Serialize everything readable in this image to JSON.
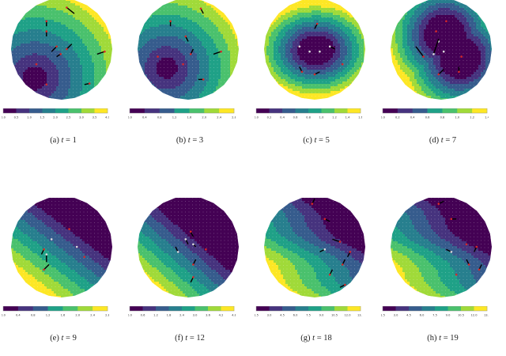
{
  "figure": {
    "panels": [
      {
        "id": "a",
        "label": "(a)",
        "t": "1",
        "caption": "(a) t = 1",
        "ticks": [
          "0.0",
          "0.5",
          "1.0",
          "1.5",
          "2.0",
          "2.5",
          "3.0",
          "3.5",
          "4.0"
        ]
      },
      {
        "id": "b",
        "label": "(b)",
        "t": "3",
        "caption": "(b) t = 3",
        "ticks": [
          "0.0",
          "0.4",
          "0.8",
          "1.2",
          "1.6",
          "2.0",
          "2.4",
          "2.8"
        ]
      },
      {
        "id": "c",
        "label": "(c)",
        "t": "5",
        "caption": "(c) t = 5",
        "ticks": [
          "0.0",
          "0.2",
          "0.4",
          "0.6",
          "0.8",
          "1.0",
          "1.2",
          "1.4",
          "1.6"
        ]
      },
      {
        "id": "d",
        "label": "(d)",
        "t": "7",
        "caption": "(d) t = 7",
        "ticks": [
          "0.0",
          "0.2",
          "0.4",
          "0.6",
          "0.8",
          "1.0",
          "1.2",
          "1.4"
        ]
      },
      {
        "id": "e",
        "label": "(e)",
        "t": "9",
        "caption": "(e) t = 9",
        "ticks": [
          "0.0",
          "0.4",
          "0.8",
          "1.2",
          "1.6",
          "2.0",
          "2.4",
          "2.8"
        ]
      },
      {
        "id": "f",
        "label": "(f)",
        "t": "12",
        "caption": "(f) t = 12",
        "ticks": [
          "0.0",
          "0.6",
          "1.2",
          "1.8",
          "2.4",
          "3.0",
          "3.6",
          "4.2",
          "4.8"
        ]
      },
      {
        "id": "g",
        "label": "(g)",
        "t": "18",
        "caption": "(g) t = 18",
        "ticks": [
          "1.5",
          "3.0",
          "4.5",
          "6.0",
          "7.5",
          "9.0",
          "10.5",
          "12.0",
          "13.5"
        ]
      },
      {
        "id": "h",
        "label": "(h)",
        "t": "19",
        "caption": "(h) t = 19",
        "ticks": [
          "1.5",
          "3.0",
          "4.5",
          "6.0",
          "7.5",
          "9.0",
          "10.5",
          "12.0",
          "13.5"
        ]
      }
    ],
    "colormap": [
      "#440154",
      "#46337e",
      "#365c8d",
      "#277f8e",
      "#1fa187",
      "#4ac16d",
      "#a0da39",
      "#fde725"
    ]
  }
}
